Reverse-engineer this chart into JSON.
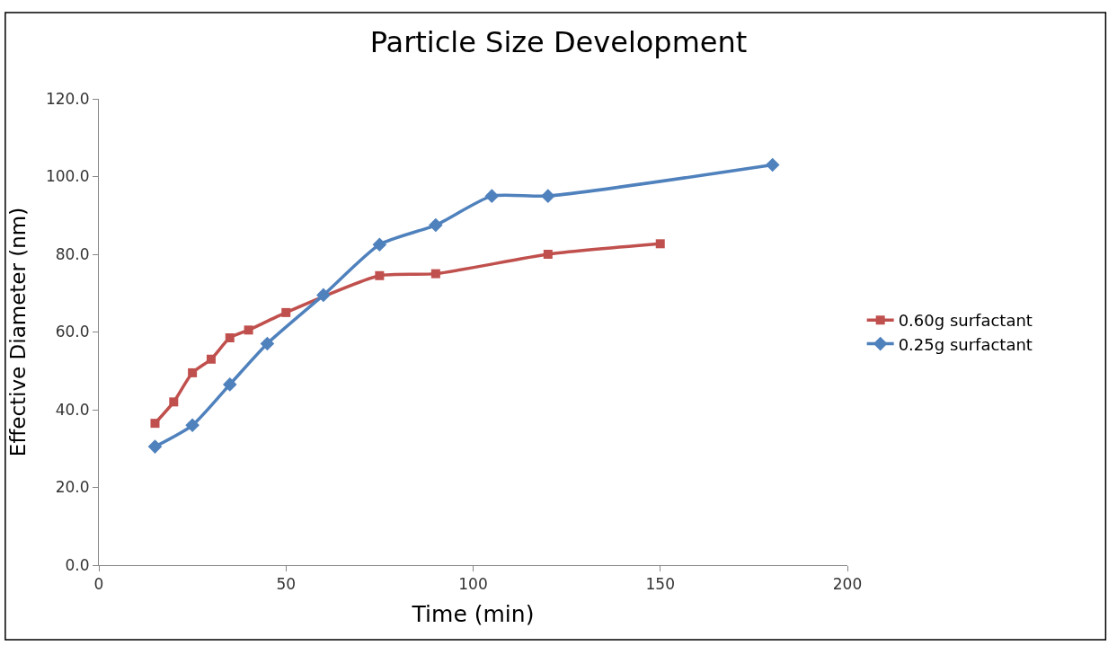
{
  "chart_data": {
    "type": "line",
    "title": "Particle Size Development",
    "xlabel": "Time (min)",
    "ylabel": "Effective Diameter (nm)",
    "series": [
      {
        "name": "0.60g surfactant",
        "color": "#c0504d",
        "marker": "square",
        "x": [
          15,
          20,
          25,
          30,
          35,
          40,
          50,
          75,
          90,
          120,
          150
        ],
        "values": [
          36.5,
          42.0,
          49.5,
          53.0,
          58.5,
          60.5,
          65.0,
          74.5,
          75.0,
          80.0,
          82.7
        ]
      },
      {
        "name": "0.25g surfactant",
        "color": "#4f81bd",
        "marker": "diamond",
        "x": [
          15,
          25,
          35,
          45,
          60,
          75,
          90,
          105,
          120,
          180
        ],
        "values": [
          30.5,
          36.0,
          46.5,
          57.0,
          69.5,
          82.5,
          87.5,
          95.0,
          95.0,
          103.0
        ]
      }
    ],
    "xlim": [
      0,
      200
    ],
    "xticks": [
      0,
      50,
      100,
      150,
      200
    ],
    "ylim": [
      0,
      120
    ],
    "yticks": [
      {
        "value": 0,
        "label": "0.0"
      },
      {
        "value": 20,
        "label": "20.0"
      },
      {
        "value": 40,
        "label": "40.0"
      },
      {
        "value": 60,
        "label": "60.0"
      },
      {
        "value": 80,
        "label": "80.0"
      },
      {
        "value": 100,
        "label": "100.0"
      },
      {
        "value": 120,
        "label": "120.0"
      }
    ],
    "legend": "right"
  }
}
